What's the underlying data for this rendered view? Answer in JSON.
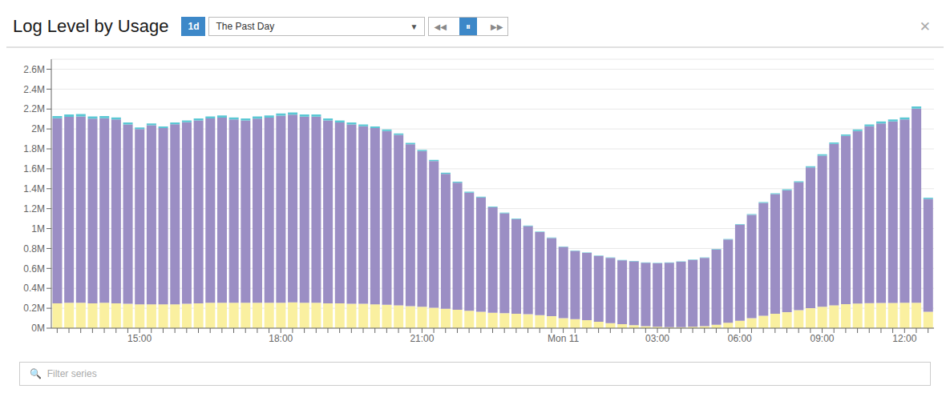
{
  "chart_data": {
    "type": "bar",
    "title": "Log Level by Usage",
    "stacked": true,
    "grid": true,
    "annotations": [
      "1d",
      "The Past Day",
      "▼",
      "◀◀",
      "⏸",
      "▶▶",
      "✕",
      "🔍  Filter series"
    ],
    "categories": [
      null,
      null,
      null,
      null,
      null,
      null,
      null,
      "15:00",
      null,
      null,
      null,
      null,
      null,
      null,
      null,
      null,
      null,
      null,
      null,
      "18:00",
      null,
      null,
      null,
      null,
      null,
      null,
      null,
      null,
      null,
      null,
      null,
      "21:00",
      null,
      null,
      null,
      null,
      null,
      null,
      null,
      null,
      null,
      null,
      null,
      "Mon 11",
      null,
      null,
      null,
      null,
      null,
      null,
      null,
      "03:00",
      null,
      null,
      null,
      null,
      null,
      null,
      "06:00",
      null,
      null,
      null,
      null,
      null,
      null,
      "09:00",
      null,
      null,
      null,
      null,
      null,
      null,
      "12:00",
      null,
      null
    ],
    "series": [
      {
        "color": "#faf0a0",
        "values": [
          250000,
          255000,
          255000,
          250000,
          255000,
          250000,
          245000,
          240000,
          240000,
          240000,
          240000,
          245000,
          250000,
          255000,
          255000,
          255000,
          255000,
          255000,
          255000,
          255000,
          260000,
          255000,
          255000,
          250000,
          250000,
          245000,
          245000,
          240000,
          235000,
          230000,
          220000,
          215000,
          205000,
          195000,
          185000,
          175000,
          165000,
          155000,
          150000,
          145000,
          140000,
          130000,
          120000,
          100000,
          90000,
          80000,
          65000,
          50000,
          40000,
          30000,
          20000,
          15000,
          10000,
          10000,
          15000,
          20000,
          35000,
          55000,
          75000,
          100000,
          125000,
          145000,
          160000,
          180000,
          200000,
          215000,
          230000,
          242000,
          248000,
          252000,
          253000,
          254000,
          255000,
          255000,
          165000
        ]
      },
      {
        "color": "#9b8ec4",
        "values": [
          1858000,
          1866000,
          1871000,
          1853000,
          1853000,
          1845000,
          1800000,
          1758000,
          1798000,
          1768000,
          1808000,
          1822000,
          1836000,
          1850000,
          1859000,
          1840000,
          1830000,
          1849000,
          1859000,
          1878000,
          1883000,
          1869000,
          1869000,
          1835000,
          1815000,
          1801000,
          1782000,
          1768000,
          1744000,
          1710000,
          1626000,
          1562000,
          1473000,
          1354000,
          1275000,
          1186000,
          1147000,
          1058000,
          1003000,
          949000,
          884000,
          835000,
          785000,
          716000,
          686000,
          676000,
          661000,
          656000,
          641000,
          641000,
          636000,
          636000,
          646000,
          656000,
          671000,
          686000,
          755000,
          835000,
          964000,
          1038000,
          1132000,
          1201000,
          1225000,
          1284000,
          1413000,
          1517000,
          1621000,
          1688000,
          1730000,
          1775000,
          1803000,
          1821000,
          1840000,
          1948000,
          1133000
        ]
      },
      {
        "color": "#5bc8d4",
        "values": [
          22000,
          24000,
          24000,
          22000,
          22000,
          20000,
          20000,
          17000,
          17000,
          17000,
          17000,
          18000,
          19000,
          20000,
          21000,
          20000,
          20000,
          21000,
          21000,
          22000,
          22000,
          21000,
          21000,
          20000,
          20000,
          19000,
          18000,
          17000,
          16000,
          15000,
          14000,
          13000,
          12000,
          11000,
          10000,
          9000,
          8000,
          7000,
          7000,
          6000,
          6000,
          5000,
          5000,
          4000,
          4000,
          4000,
          4000,
          4000,
          4000,
          4000,
          4000,
          4000,
          4000,
          4000,
          4000,
          4000,
          5000,
          5000,
          6000,
          7000,
          8000,
          9000,
          10000,
          11000,
          12000,
          13000,
          14000,
          15000,
          17000,
          18000,
          19000,
          20000,
          20000,
          22000,
          12000
        ]
      }
    ],
    "ylim": [
      0,
      2700000
    ],
    "yticks": [
      {
        "value": 0,
        "label": "0M"
      },
      {
        "value": 200000,
        "label": "0.2M"
      },
      {
        "value": 400000,
        "label": "0.4M"
      },
      {
        "value": 600000,
        "label": "0.6M"
      },
      {
        "value": 800000,
        "label": "0.8M"
      },
      {
        "value": 1000000,
        "label": "1M"
      },
      {
        "value": 1200000,
        "label": "1.2M"
      },
      {
        "value": 1400000,
        "label": "1.4M"
      },
      {
        "value": 1600000,
        "label": "1.6M"
      },
      {
        "value": 1800000,
        "label": "1.8M"
      },
      {
        "value": 2000000,
        "label": "2M"
      },
      {
        "value": 2200000,
        "label": "2.2M"
      },
      {
        "value": 2400000,
        "label": "2.4M"
      },
      {
        "value": 2600000,
        "label": "2.6M"
      }
    ]
  }
}
